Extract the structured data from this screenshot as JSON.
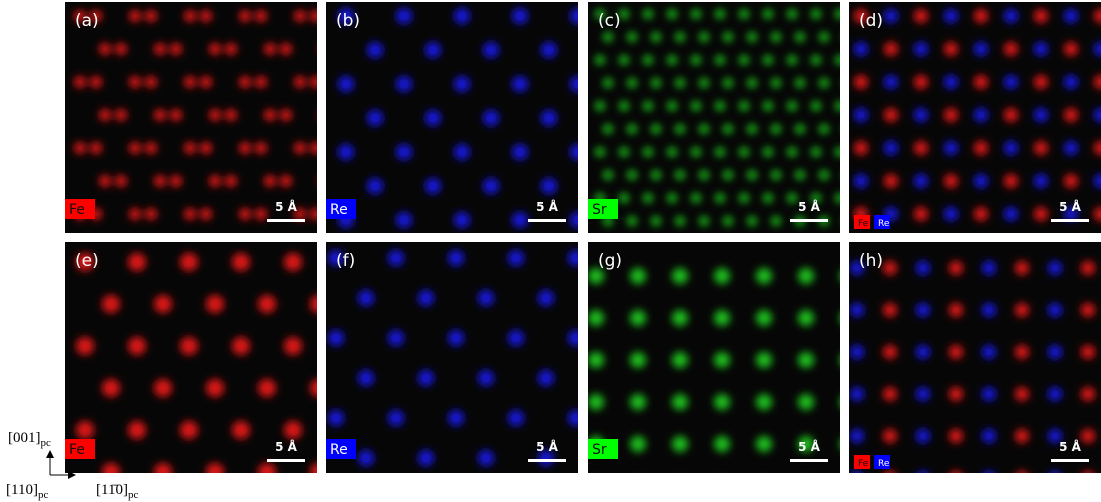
{
  "panels": [
    {
      "label": "(a)",
      "elements": [
        "Fe"
      ],
      "scale": "5 Å"
    },
    {
      "label": "(b)",
      "elements": [
        "Re"
      ],
      "scale": "5 Å"
    },
    {
      "label": "(c)",
      "elements": [
        "Sr"
      ],
      "scale": "5 Å"
    },
    {
      "label": "(d)",
      "elements": [
        "Fe",
        "Re"
      ],
      "scale": "5 Å"
    },
    {
      "label": "(e)",
      "elements": [
        "Fe"
      ],
      "scale": "5 Å"
    },
    {
      "label": "(f)",
      "elements": [
        "Re"
      ],
      "scale": "5 Å"
    },
    {
      "label": "(g)",
      "elements": [
        "Sr"
      ],
      "scale": "5 Å"
    },
    {
      "label": "(h)",
      "elements": [
        "Fe",
        "Re"
      ],
      "scale": "5 Å"
    }
  ],
  "axes": {
    "vertical": {
      "text": "[001]",
      "sub": "pc"
    },
    "out_of_plane": {
      "text": "[110]",
      "sub": "pc"
    },
    "horizontal": {
      "text": "[11̄0]",
      "sub": "pc"
    }
  }
}
